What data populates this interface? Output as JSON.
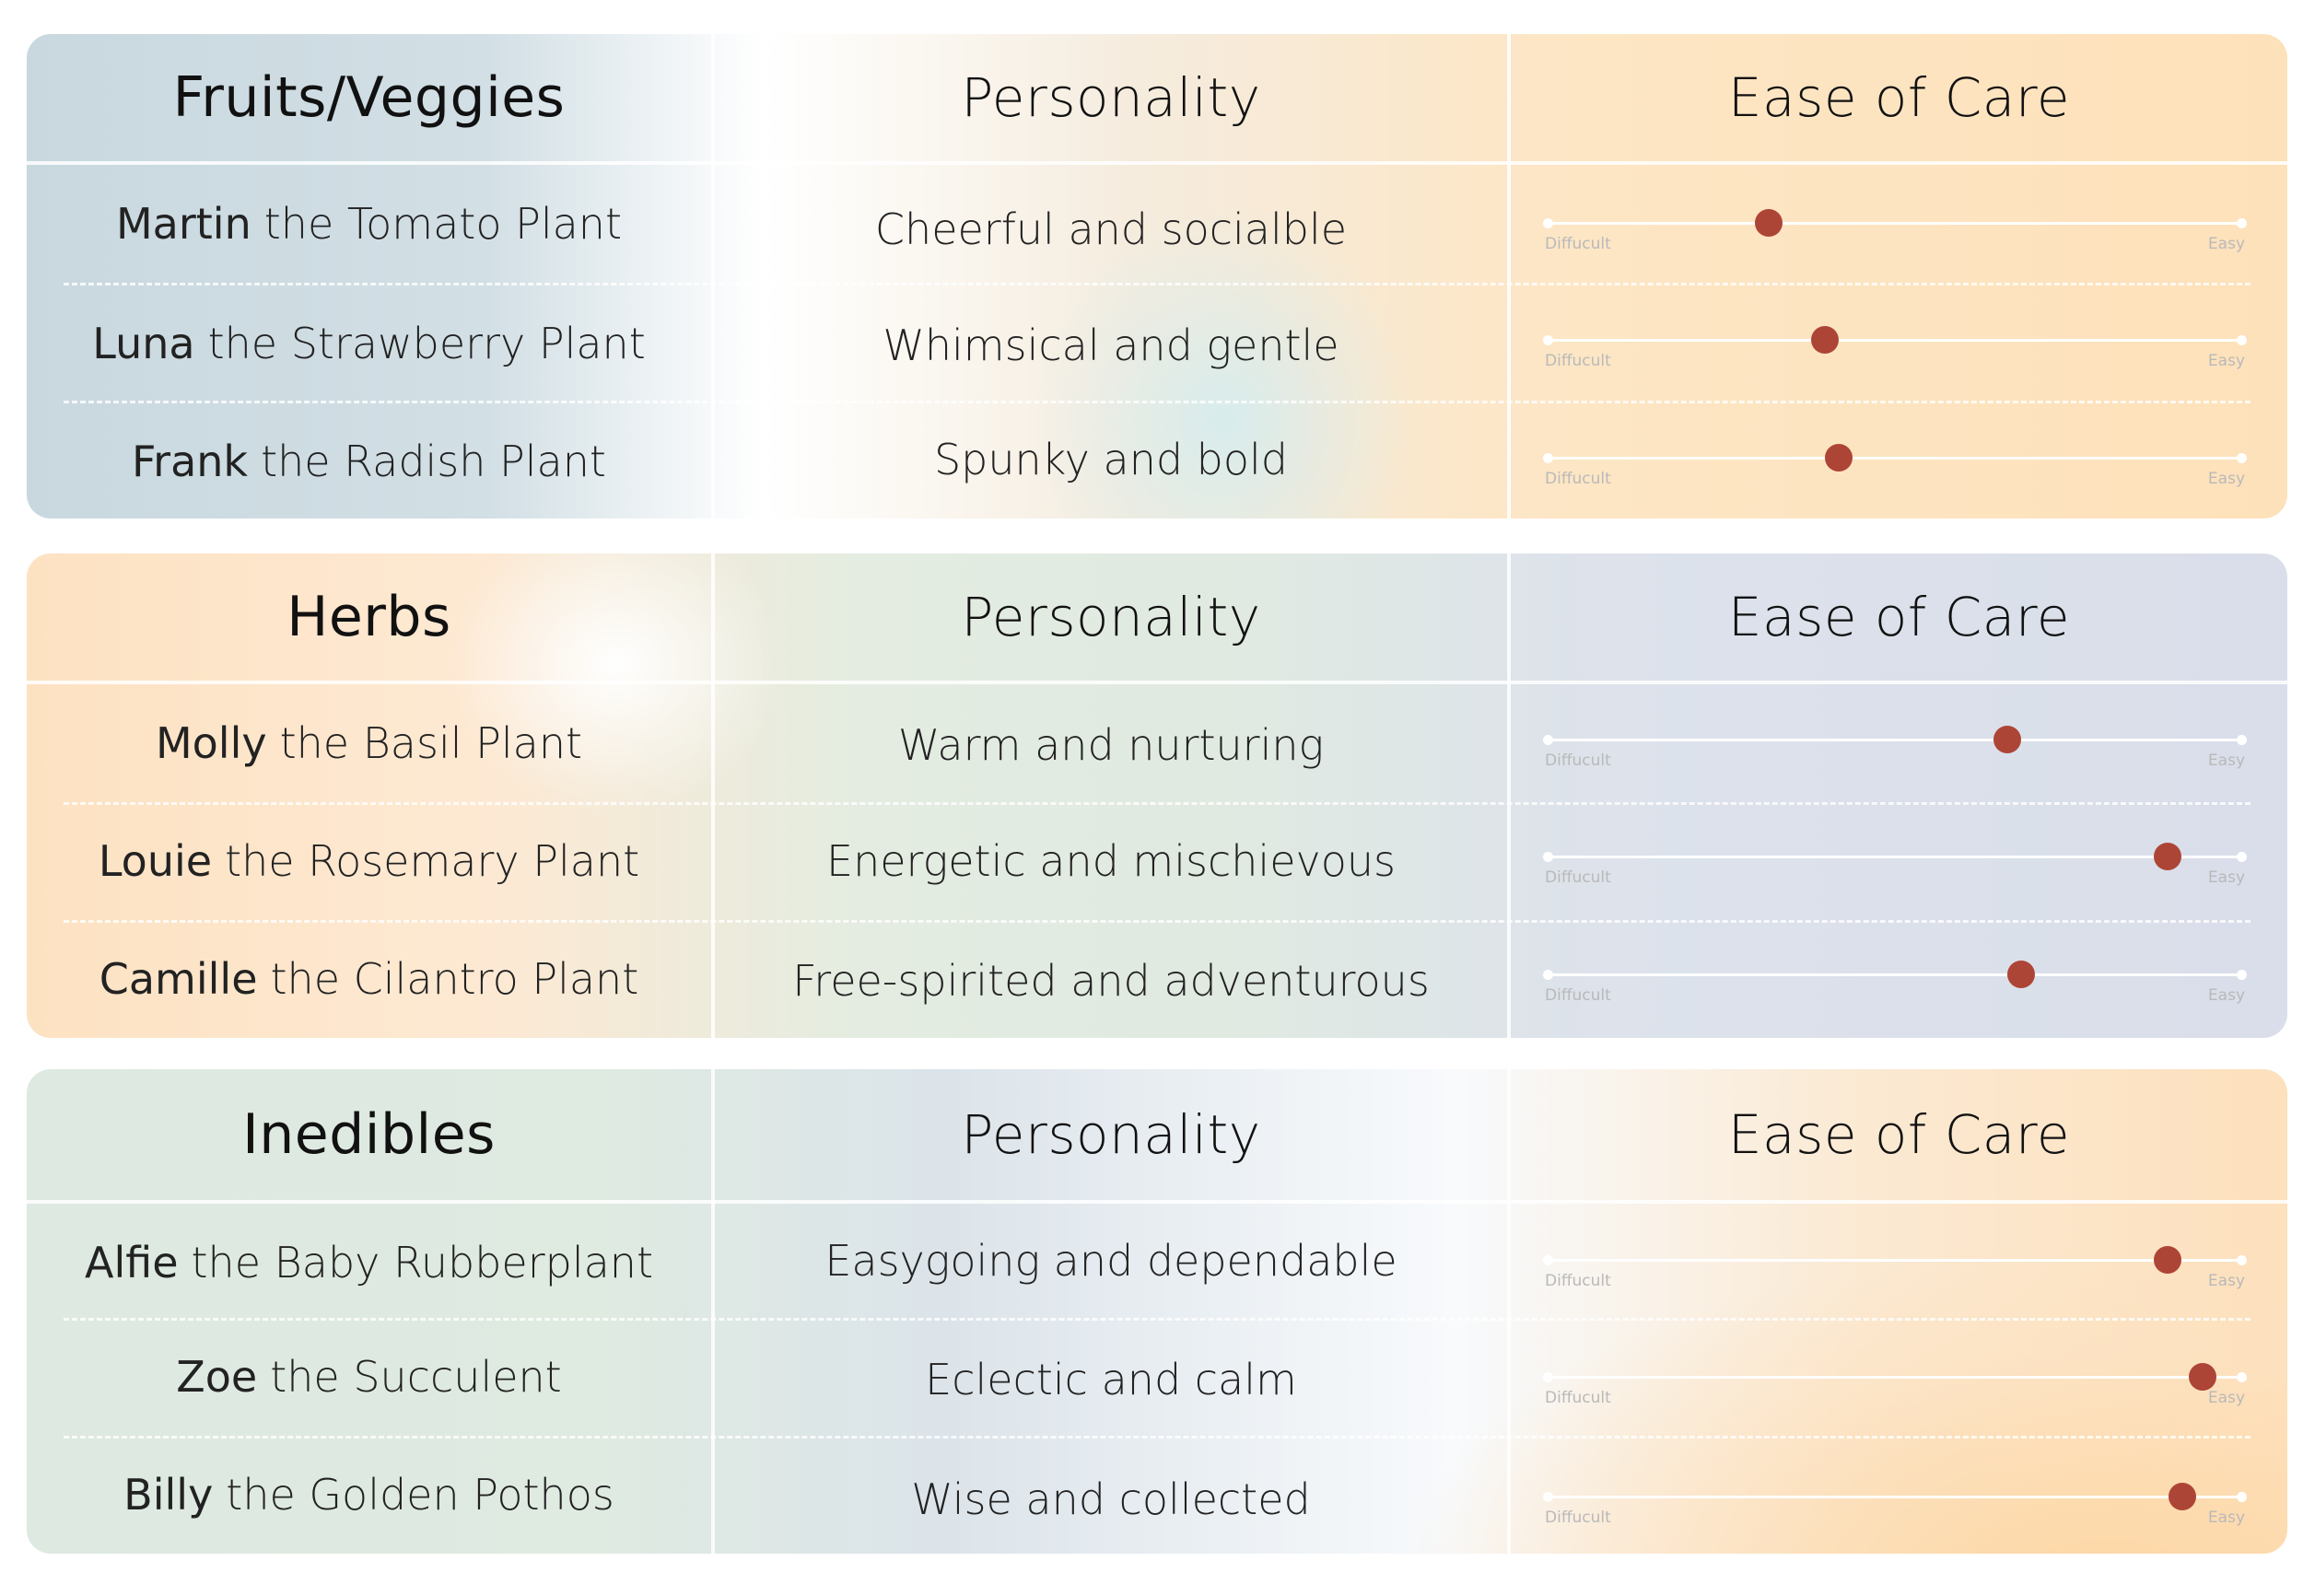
{
  "sections": [
    {
      "category": "Fruits/Veggies",
      "personality_header": "Personality",
      "ease_header": "Ease of Care",
      "rows": [
        {
          "first_name": "Martin",
          "rest_name": "the Tomato Plant",
          "personality": "Cheerful and socialble",
          "ease": 0.32,
          "label_left": "Diffucult",
          "label_right": "Easy"
        },
        {
          "first_name": "Luna",
          "rest_name": "the Strawberry Plant",
          "personality": "Whimsical and gentle",
          "ease": 0.4,
          "label_left": "Diffucult",
          "label_right": "Easy"
        },
        {
          "first_name": "Frank",
          "rest_name": "the Radish Plant",
          "personality": "Spunky and bold",
          "ease": 0.42,
          "label_left": "Diffucult",
          "label_right": "Easy"
        }
      ]
    },
    {
      "category": "Herbs",
      "personality_header": "Personality",
      "ease_header": "Ease of Care",
      "rows": [
        {
          "first_name": "Molly",
          "rest_name": "the Basil Plant",
          "personality": "Warm and nurturing",
          "ease": 0.66,
          "label_left": "Diffucult",
          "label_right": "Easy"
        },
        {
          "first_name": "Louie",
          "rest_name": "the Rosemary Plant",
          "personality": "Energetic and mischievous",
          "ease": 0.89,
          "label_left": "Diffucult",
          "label_right": "Easy"
        },
        {
          "first_name": "Camille",
          "rest_name": "the Cilantro Plant",
          "personality": "Free-spirited and adventurous",
          "ease": 0.68,
          "label_left": "Diffucult",
          "label_right": "Easy"
        }
      ]
    },
    {
      "category": "Inedibles",
      "personality_header": "Personality",
      "ease_header": "Ease of Care",
      "rows": [
        {
          "first_name": "Alfie",
          "rest_name": "the Baby Rubberplant",
          "personality": "Easygoing and dependable",
          "ease": 0.89,
          "label_left": "Diffucult",
          "label_right": "Easy"
        },
        {
          "first_name": "Zoe",
          "rest_name": "the Succulent",
          "personality": "Eclectic and calm",
          "ease": 0.94,
          "label_left": "Diffucult",
          "label_right": "Easy"
        },
        {
          "first_name": "Billy",
          "rest_name": "the Golden Pothos",
          "personality": "Wise and collected",
          "ease": 0.91,
          "label_left": "Diffucult",
          "label_right": "Easy"
        }
      ]
    }
  ],
  "colors": {
    "knob": "#ad4536",
    "track": "#ffffff",
    "scale_label": "#b9b9b9"
  }
}
